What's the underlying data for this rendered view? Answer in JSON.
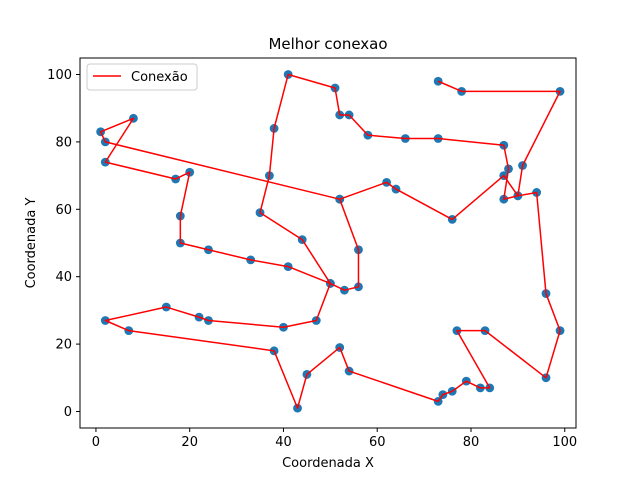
{
  "chart_data": {
    "type": "line",
    "title": "Melhor conexao",
    "xlabel": "Coordenada X",
    "ylabel": "Coordenada Y",
    "xlim": [
      -3.4,
      102.4
    ],
    "ylim": [
      -4.9,
      104.9
    ],
    "xticks": [
      0,
      20,
      40,
      60,
      80,
      100
    ],
    "yticks": [
      0,
      20,
      40,
      60,
      80,
      100
    ],
    "grid": false,
    "legend_position": "top-left",
    "points_color": "#1f77b4",
    "line_color": "#ff0000",
    "series": [
      {
        "name": "Conexão",
        "style": "line",
        "x": [
          73,
          78,
          99,
          91,
          90,
          87,
          88,
          87,
          73,
          66,
          58,
          54,
          52,
          51,
          41,
          38,
          37,
          35,
          44,
          50,
          41,
          33,
          24,
          18,
          18,
          20,
          17,
          2,
          8,
          1,
          2,
          52,
          56,
          56,
          53,
          50,
          47,
          40,
          24,
          22,
          15,
          2,
          7,
          38,
          43,
          45,
          52,
          54,
          73,
          74,
          76,
          79,
          82,
          84,
          77,
          83,
          96,
          99,
          96,
          94,
          90,
          87,
          76,
          64,
          62,
          52
        ],
        "y": [
          98,
          95,
          95,
          73,
          64,
          63,
          72,
          79,
          81,
          81,
          82,
          88,
          88,
          96,
          100,
          84,
          70,
          59,
          51,
          38,
          43,
          45,
          48,
          50,
          58,
          71,
          69,
          74,
          87,
          83,
          80,
          63,
          48,
          37,
          36,
          38,
          27,
          25,
          27,
          28,
          31,
          27,
          24,
          18,
          1,
          11,
          19,
          12,
          3,
          5,
          6,
          9,
          7,
          7,
          24,
          24,
          10,
          24,
          35,
          65,
          64,
          70,
          57,
          66,
          68,
          63
        ]
      }
    ]
  }
}
